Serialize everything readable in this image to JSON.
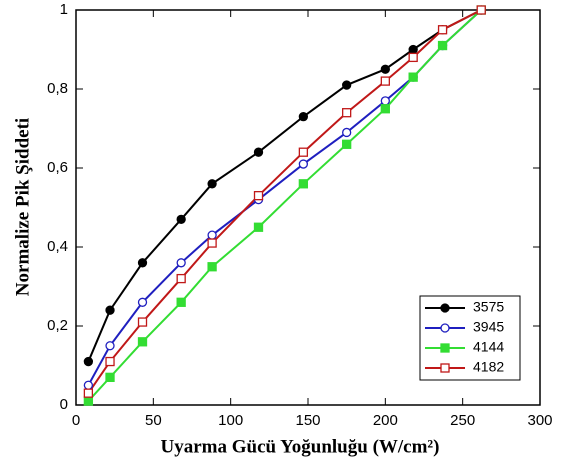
{
  "chart_data": {
    "type": "line",
    "xlabel": "Uyarma Gücü Yoğunluğu (W/cm²)",
    "ylabel": "Normalize Pik Şiddeti",
    "x": [
      8,
      22,
      43,
      68,
      88,
      118,
      147,
      175,
      200,
      218,
      237,
      262
    ],
    "series": [
      {
        "name": "3575",
        "color": "#000000",
        "marker": "circle",
        "filled": true,
        "values": [
          0.11,
          0.24,
          0.36,
          0.47,
          0.56,
          0.64,
          0.73,
          0.81,
          0.85,
          0.9,
          0.95,
          1.0
        ]
      },
      {
        "name": "3945",
        "color": "#1f1fbf",
        "marker": "circle",
        "filled": false,
        "values": [
          0.05,
          0.15,
          0.26,
          0.36,
          0.43,
          0.52,
          0.61,
          0.69,
          0.77,
          0.83,
          0.91,
          1.0
        ]
      },
      {
        "name": "4144",
        "color": "#33dd33",
        "marker": "square",
        "filled": true,
        "values": [
          0.01,
          0.07,
          0.16,
          0.26,
          0.35,
          0.45,
          0.56,
          0.66,
          0.75,
          0.83,
          0.91,
          1.0
        ]
      },
      {
        "name": "4182",
        "color": "#c01818",
        "marker": "square",
        "filled": false,
        "values": [
          0.03,
          0.11,
          0.21,
          0.32,
          0.41,
          0.53,
          0.64,
          0.74,
          0.82,
          0.88,
          0.95,
          1.0
        ]
      }
    ],
    "xlim": [
      0,
      300
    ],
    "xticks": [
      0,
      50,
      100,
      150,
      200,
      250,
      300
    ],
    "ylim": [
      0,
      1
    ],
    "yticks": [
      0,
      {
        "value": 0.2,
        "label": "0,2"
      },
      {
        "value": 0.4,
        "label": "0,4"
      },
      {
        "value": 0.6,
        "label": "0,6"
      },
      {
        "value": 0.8,
        "label": "0,8"
      },
      1
    ],
    "legend": "lower right"
  }
}
